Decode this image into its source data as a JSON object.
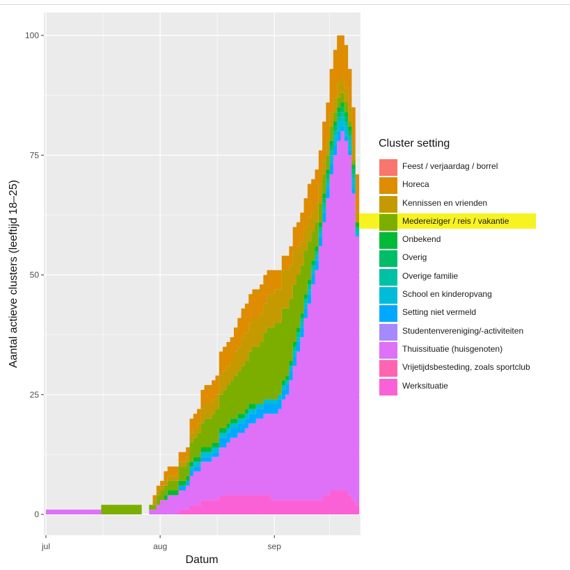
{
  "chart_data": {
    "type": "area",
    "stacked": true,
    "xlabel": "Datum",
    "ylabel": "Aantal actieve clusters (leeftijd 18–25)",
    "x_ticks": [
      "jul",
      "aug",
      "sep"
    ],
    "y_ticks": [
      "0",
      "25",
      "50",
      "75",
      "100"
    ],
    "ylim": [
      0,
      100
    ],
    "grid": true,
    "legend_title": "Cluster setting",
    "legend_position": "right",
    "x_start": "2020-07-01",
    "x_end": "2020-09-24",
    "x": [
      "2020-07-01",
      "2020-07-15",
      "2020-07-16",
      "2020-07-26",
      "2020-07-27",
      "2020-07-28",
      "2020-07-31",
      "2020-08-04",
      "2020-08-07",
      "2020-08-10",
      "2020-08-14",
      "2020-08-19",
      "2020-08-24",
      "2020-08-28",
      "2020-09-01",
      "2020-09-04",
      "2020-09-08",
      "2020-09-12",
      "2020-09-15",
      "2020-09-17",
      "2020-09-19",
      "2020-09-21",
      "2020-09-24"
    ],
    "series": [
      {
        "name": "Werksituatie",
        "color": "#fb61d7",
        "values": [
          0,
          0,
          0,
          0,
          0,
          0,
          0,
          0,
          1,
          2,
          3,
          4,
          4,
          4,
          3,
          3,
          3,
          3,
          4,
          5,
          5,
          4,
          1
        ]
      },
      {
        "name": "Vrijetijdsbesteding, zoals sportclub",
        "color": "#ff64b0",
        "values": [
          0,
          0,
          0,
          0,
          0,
          0,
          0,
          0,
          0,
          0,
          0,
          0,
          0,
          0,
          0,
          0,
          0,
          0,
          0,
          0,
          0,
          0,
          0
        ]
      },
      {
        "name": "Thuissituatie (huisgenoten)",
        "color": "#df70f8",
        "values": [
          1,
          1,
          0,
          0,
          0,
          0,
          2,
          4,
          4,
          7,
          8,
          11,
          14,
          16,
          18,
          22,
          34,
          48,
          62,
          70,
          75,
          71,
          49
        ]
      },
      {
        "name": "Studentenvereniging/-activiteiten",
        "color": "#a58aff",
        "values": [
          0,
          0,
          0,
          0,
          0,
          0,
          0,
          0,
          0,
          0,
          0,
          0,
          0,
          0,
          0,
          0,
          0,
          0,
          0,
          0,
          0,
          0,
          0
        ]
      },
      {
        "name": "Setting niet vermeld",
        "color": "#00a9ff",
        "values": [
          0,
          0,
          0,
          0,
          0,
          0,
          0,
          0,
          1,
          1,
          1,
          2,
          2,
          2,
          2,
          2,
          2,
          2,
          2,
          2,
          1,
          1,
          0
        ]
      },
      {
        "name": "School en kinderopvang",
        "color": "#00bcd8",
        "values": [
          0,
          0,
          0,
          0,
          0,
          0,
          0,
          0,
          0,
          1,
          1,
          1,
          1,
          1,
          1,
          1,
          1,
          1,
          1,
          2,
          2,
          2,
          1
        ]
      },
      {
        "name": "Overige familie",
        "color": "#00c1a3",
        "values": [
          0,
          0,
          0,
          0,
          0,
          0,
          0,
          0,
          0,
          0,
          0,
          0,
          0,
          0,
          0,
          0,
          1,
          1,
          1,
          1,
          1,
          1,
          1
        ]
      },
      {
        "name": "Overig",
        "color": "#00be67",
        "values": [
          0,
          0,
          0,
          0,
          0,
          0,
          0,
          0,
          0,
          0,
          0,
          0,
          0,
          0,
          0,
          0,
          0,
          0,
          1,
          1,
          1,
          1,
          0
        ]
      },
      {
        "name": "Onbekend",
        "color": "#00ba38",
        "values": [
          0,
          0,
          0,
          0,
          0,
          0,
          0,
          1,
          1,
          1,
          1,
          1,
          1,
          0,
          0,
          1,
          1,
          1,
          1,
          1,
          1,
          1,
          1
        ]
      },
      {
        "name": "Medereiziger / reis / vakantie",
        "color": "#7cae00",
        "values": [
          0,
          0,
          2,
          2,
          0,
          0,
          2,
          2,
          3,
          4,
          6,
          8,
          10,
          13,
          16,
          14,
          10,
          5,
          3,
          2,
          2,
          1,
          0
        ]
      },
      {
        "name": "Kennissen en vrienden",
        "color": "#c49a00",
        "values": [
          0,
          0,
          0,
          0,
          0,
          0,
          1,
          1,
          1,
          2,
          3,
          4,
          6,
          6,
          7,
          8,
          5,
          4,
          3,
          3,
          3,
          3,
          2
        ]
      },
      {
        "name": "Horeca",
        "color": "#de8c00",
        "values": [
          0,
          0,
          0,
          0,
          0,
          0,
          1,
          2,
          2,
          3,
          4,
          5,
          6,
          6,
          4,
          3,
          6,
          7,
          8,
          10,
          9,
          8,
          8
        ]
      },
      {
        "name": "Feest / verjaardag / borrel",
        "color": "#f8766d",
        "values": [
          0,
          0,
          0,
          0,
          0,
          0,
          0,
          0,
          0,
          0,
          0,
          0,
          0,
          0,
          0,
          0,
          0,
          0,
          0,
          0,
          0,
          0,
          0
        ]
      }
    ],
    "annotations": [
      {
        "text": "Medereiziger / reis / vakantie",
        "type": "highlight",
        "color": "#f7f321"
      }
    ]
  },
  "legend": {
    "title": "Cluster setting",
    "items": [
      {
        "label": "Feest / verjaardag / borrel",
        "color": "#f8766d"
      },
      {
        "label": "Horeca",
        "color": "#de8c00"
      },
      {
        "label": "Kennissen en vrienden",
        "color": "#c49a00"
      },
      {
        "label": "Medereiziger / reis / vakantie",
        "color": "#7cae00"
      },
      {
        "label": "Onbekend",
        "color": "#00ba38"
      },
      {
        "label": "Overig",
        "color": "#00be67"
      },
      {
        "label": "Overige familie",
        "color": "#00c1a3"
      },
      {
        "label": "School en kinderopvang",
        "color": "#00bcd8"
      },
      {
        "label": "Setting niet vermeld",
        "color": "#00a9ff"
      },
      {
        "label": "Studentenvereniging/-activiteiten",
        "color": "#a58aff"
      },
      {
        "label": "Thuissituatie (huisgenoten)",
        "color": "#df70f8"
      },
      {
        "label": "Vrijetijdsbesteding, zoals sportclub",
        "color": "#ff64b0"
      },
      {
        "label": "Werksituatie",
        "color": "#fb61d7"
      }
    ]
  },
  "highlight_color": "#f7f321"
}
